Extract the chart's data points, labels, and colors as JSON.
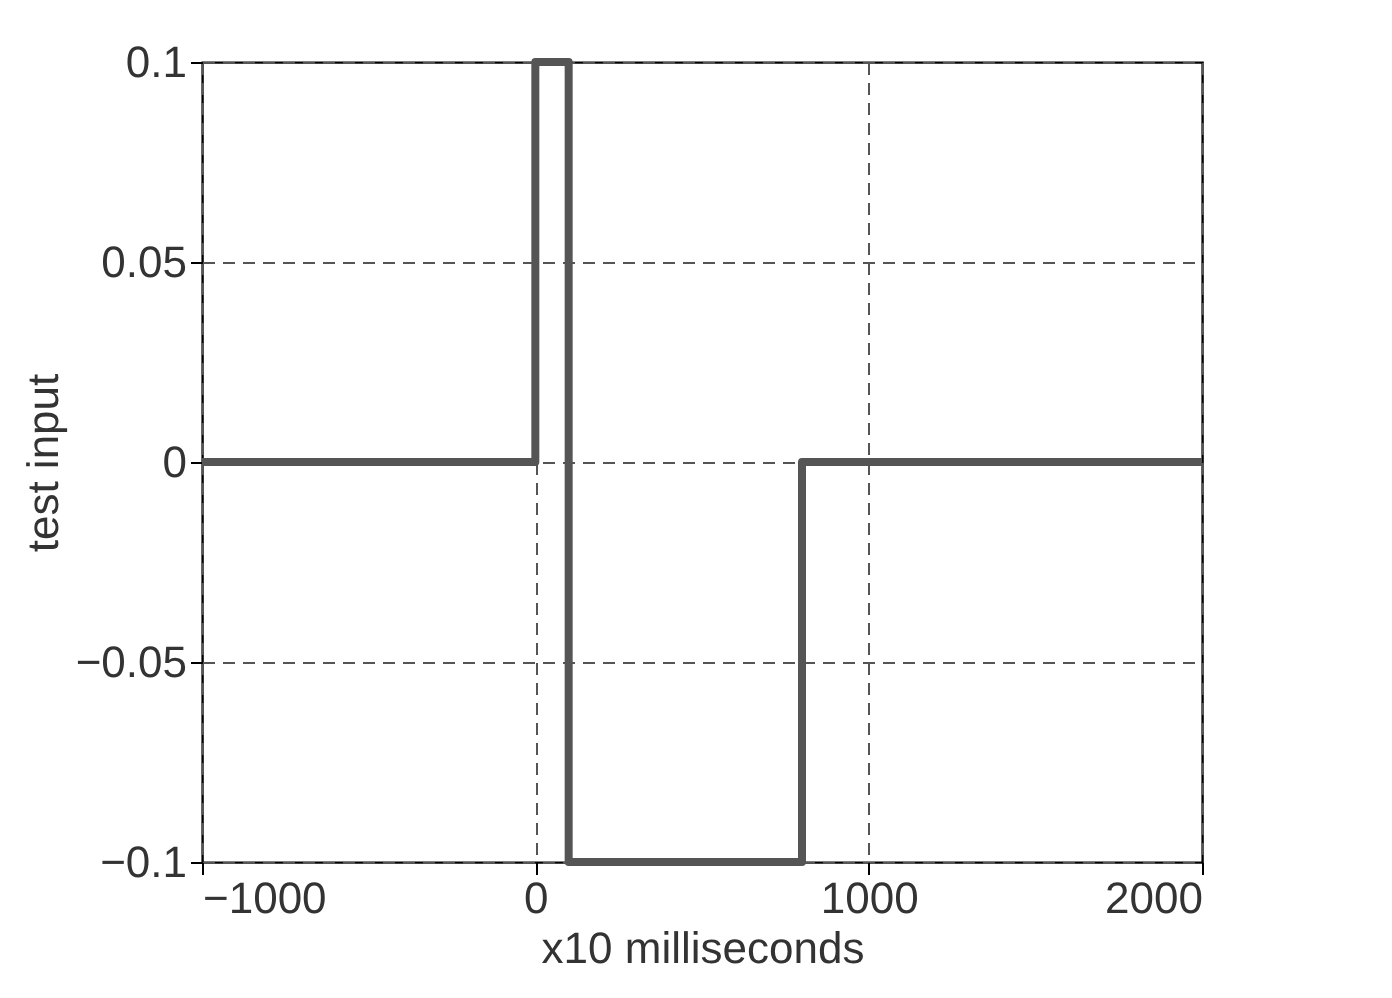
{
  "chart_data": {
    "type": "line",
    "xlabel": "x10 milliseconds",
    "ylabel": "test  input",
    "x": [
      -1000,
      0,
      0,
      100,
      100,
      800,
      800,
      2000
    ],
    "series": [
      {
        "color": "#555555",
        "values": [
          0,
          0,
          0.1,
          0.1,
          -0.1,
          -0.1,
          0,
          0
        ]
      }
    ],
    "xlim": [
      -1000,
      2000
    ],
    "xticks": [
      -1000,
      0,
      1000,
      2000
    ],
    "ylim": [
      -0.1,
      0.1
    ],
    "yticks": [
      -0.1,
      -0.05,
      0,
      0.05,
      0.1
    ],
    "grid": true,
    "line_style": "solid",
    "marker": "none"
  }
}
